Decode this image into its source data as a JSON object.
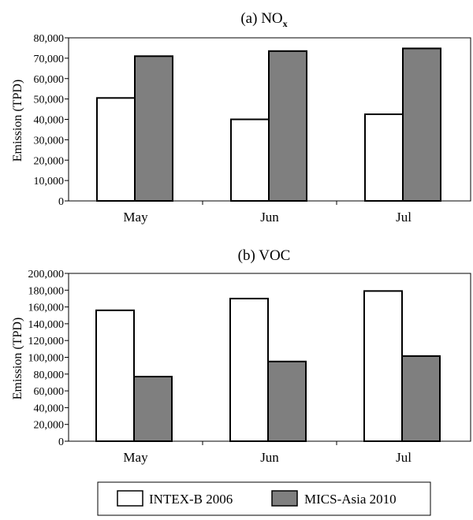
{
  "chart_data": [
    {
      "type": "bar",
      "title": "(a) NO",
      "title_subscript": "x",
      "ylabel": "Emission (TPD)",
      "xlabel": "",
      "categories": [
        "May",
        "Jun",
        "Jul"
      ],
      "ylim": [
        0,
        80000
      ],
      "yticks": [
        0,
        10000,
        20000,
        30000,
        40000,
        50000,
        60000,
        70000,
        80000
      ],
      "ytick_labels": [
        "0",
        "10,000",
        "20,000",
        "30,000",
        "40,000",
        "50,000",
        "60,000",
        "70,000",
        "80,000"
      ],
      "grid": false,
      "series": [
        {
          "name": "INTEX-B 2006",
          "values": [
            50500,
            40000,
            42500
          ]
        },
        {
          "name": "MICS-Asia 2010",
          "values": [
            71000,
            73500,
            74800
          ]
        }
      ]
    },
    {
      "type": "bar",
      "title": "(b) VOC",
      "title_subscript": "",
      "ylabel": "Emission (TPD)",
      "xlabel": "",
      "categories": [
        "May",
        "Jun",
        "Jul"
      ],
      "ylim": [
        0,
        200000
      ],
      "yticks": [
        0,
        20000,
        40000,
        60000,
        80000,
        100000,
        120000,
        140000,
        160000,
        180000,
        200000
      ],
      "ytick_labels": [
        "0",
        "20,000",
        "40,000",
        "60,000",
        "80,000",
        "100,000",
        "120,000",
        "140,000",
        "160,000",
        "180,000",
        "200,000"
      ],
      "grid": false,
      "series": [
        {
          "name": "INTEX-B 2006",
          "values": [
            156000,
            170000,
            179000
          ]
        },
        {
          "name": "MICS-Asia 2010",
          "values": [
            77000,
            95000,
            101500
          ]
        }
      ]
    }
  ],
  "legend": {
    "placement": "bottom",
    "items": [
      {
        "label": "INTEX-B 2006",
        "color": "#ffffff"
      },
      {
        "label": "MICS-Asia 2010",
        "color": "#7f7f7f"
      }
    ]
  },
  "colors": {
    "series": [
      "#ffffff",
      "#7f7f7f"
    ],
    "stroke": "#000000"
  }
}
